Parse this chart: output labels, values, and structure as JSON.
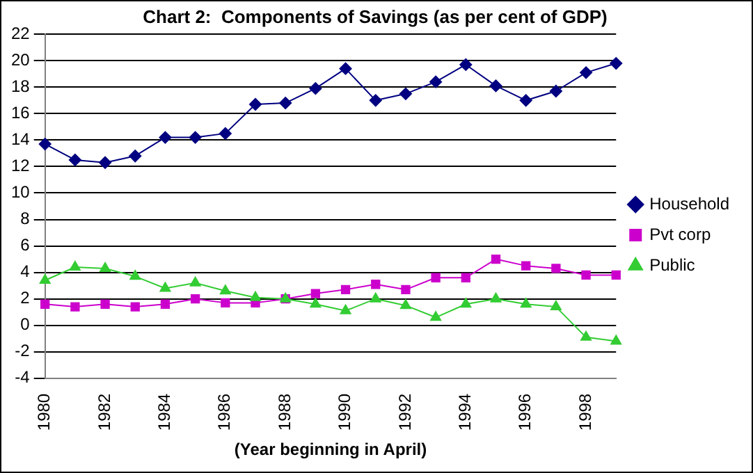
{
  "chart_data": {
    "type": "line",
    "title": "Chart 2:  Components of Savings (as per cent of GDP)",
    "xlabel": "(Year beginning in April)",
    "categories": [
      "1980",
      null,
      "1982",
      null,
      "1984",
      null,
      "1986",
      null,
      "1988",
      null,
      "1990",
      null,
      "1992",
      null,
      "1994",
      null,
      "1996",
      null,
      "1998",
      null
    ],
    "series": [
      {
        "name": "Household",
        "color": "#000080",
        "marker": "diamond",
        "values": [
          13.7,
          12.5,
          12.3,
          12.8,
          14.2,
          14.2,
          14.5,
          16.7,
          16.8,
          17.9,
          19.4,
          17.0,
          17.5,
          18.4,
          19.7,
          18.1,
          17.0,
          17.7,
          19.1,
          19.8
        ]
      },
      {
        "name": "Pvt corp",
        "color": "#cc00cc",
        "marker": "square",
        "values": [
          1.6,
          1.4,
          1.6,
          1.4,
          1.6,
          2.0,
          1.7,
          1.7,
          2.0,
          2.4,
          2.7,
          3.1,
          2.7,
          3.6,
          3.6,
          5.0,
          4.5,
          4.3,
          3.8,
          3.8
        ]
      },
      {
        "name": "Public",
        "color": "#33cc33",
        "marker": "triangle",
        "values": [
          3.4,
          4.4,
          4.3,
          3.7,
          2.8,
          3.2,
          2.6,
          2.1,
          2.0,
          1.6,
          1.1,
          2.0,
          1.5,
          0.6,
          1.6,
          2.0,
          1.6,
          1.4,
          -0.9,
          -1.2
        ]
      }
    ],
    "ylim": [
      -4,
      22
    ],
    "yticks": [
      -4,
      -2,
      0,
      2,
      4,
      6,
      8,
      10,
      12,
      14,
      16,
      18,
      20,
      22
    ],
    "grid": "y",
    "legend": "right"
  }
}
